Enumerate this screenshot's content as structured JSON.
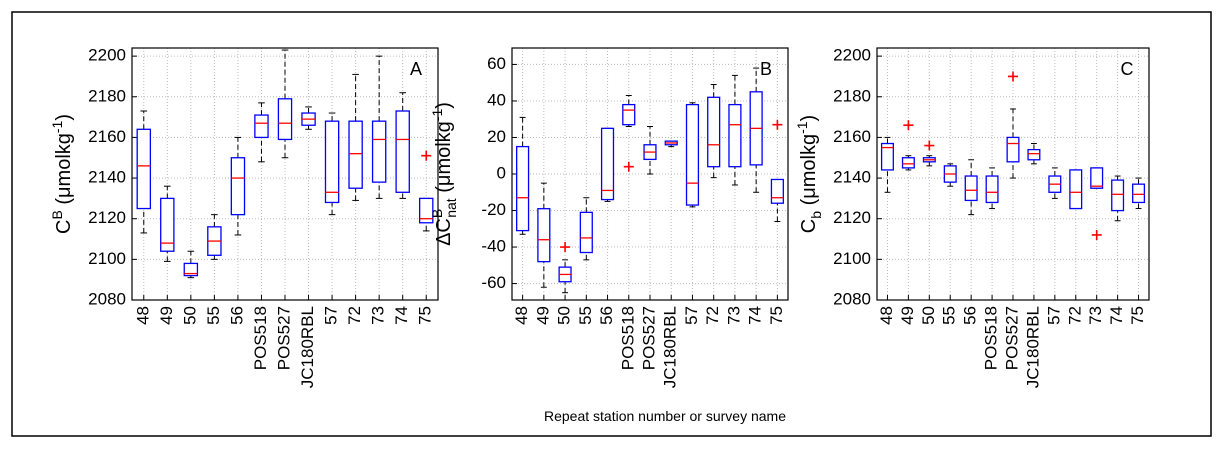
{
  "x_label": "Repeat station number or survey name",
  "chart_data": [
    {
      "type": "box",
      "panel": "A",
      "ylabel": [
        {
          "text": "C"
        },
        {
          "text": "B",
          "pos": "sup"
        },
        {
          "text": " (μmolkg"
        },
        {
          "text": "-1",
          "pos": "sup"
        },
        {
          "text": ")"
        }
      ],
      "categories": [
        "48",
        "49",
        "50",
        "55",
        "56",
        "POS518",
        "POS527",
        "JC180RBL",
        "57",
        "72",
        "73",
        "74",
        "75"
      ],
      "ylim": [
        2080,
        2204
      ],
      "yticks": [
        2080,
        2100,
        2120,
        2140,
        2160,
        2180,
        2200
      ],
      "grid": true,
      "box_color": "#0000ff",
      "median_color": "#ff0000",
      "outlier_color": "#ff0000",
      "boxes": [
        {
          "min": 2113,
          "q1": 2125,
          "median": 2146,
          "q3": 2164,
          "max": 2173
        },
        {
          "min": 2099,
          "q1": 2104,
          "median": 2108,
          "q3": 2130,
          "max": 2136
        },
        {
          "min": 2091,
          "q1": 2092,
          "median": 2093,
          "q3": 2098,
          "max": 2104
        },
        {
          "min": 2100,
          "q1": 2102,
          "median": 2109,
          "q3": 2116,
          "max": 2122
        },
        {
          "min": 2112,
          "q1": 2122,
          "median": 2140,
          "q3": 2150,
          "max": 2160
        },
        {
          "min": 2148,
          "q1": 2160,
          "median": 2167,
          "q3": 2171,
          "max": 2177
        },
        {
          "min": 2150,
          "q1": 2159,
          "median": 2167,
          "q3": 2179,
          "max": 2203
        },
        {
          "min": 2164,
          "q1": 2166,
          "median": 2169,
          "q3": 2172,
          "max": 2175
        },
        {
          "min": 2122,
          "q1": 2128,
          "median": 2133,
          "q3": 2168,
          "max": 2172
        },
        {
          "min": 2129,
          "q1": 2135,
          "median": 2152,
          "q3": 2168,
          "max": 2191
        },
        {
          "min": 2130,
          "q1": 2138,
          "median": 2159,
          "q3": 2168,
          "max": 2200
        },
        {
          "min": 2130,
          "q1": 2133,
          "median": 2159,
          "q3": 2173,
          "max": 2182
        },
        {
          "min": 2114,
          "q1": 2118,
          "median": 2120,
          "q3": 2130,
          "max": 2130,
          "outliers": [
            2151
          ]
        }
      ]
    },
    {
      "type": "box",
      "panel": "B",
      "ylabel": [
        {
          "text": "ΔC"
        },
        {
          "text": "B",
          "pos": "sup"
        },
        {
          "text": "nat",
          "pos": "sub"
        },
        {
          "text": " (μmolkg"
        },
        {
          "text": "-1",
          "pos": "sup"
        },
        {
          "text": ")"
        }
      ],
      "categories": [
        "48",
        "49",
        "50",
        "55",
        "56",
        "POS518",
        "POS527",
        "JC180RBL",
        "57",
        "72",
        "73",
        "74",
        "75"
      ],
      "ylim": [
        -69,
        69
      ],
      "yticks": [
        -60,
        -40,
        -20,
        0,
        20,
        40,
        60
      ],
      "grid": true,
      "box_color": "#0000ff",
      "median_color": "#ff0000",
      "outlier_color": "#ff0000",
      "boxes": [
        {
          "min": -33,
          "q1": -31,
          "median": -13,
          "q3": 15,
          "max": 31
        },
        {
          "min": -62,
          "q1": -48,
          "median": -36,
          "q3": -19,
          "max": -5
        },
        {
          "min": -65,
          "q1": -59,
          "median": -55,
          "q3": -51,
          "max": -47,
          "outliers": [
            -40
          ]
        },
        {
          "min": -47,
          "q1": -43,
          "median": -35,
          "q3": -21,
          "max": -13
        },
        {
          "min": -15,
          "q1": -14,
          "median": -9,
          "q3": 25,
          "max": 25
        },
        {
          "min": 26,
          "q1": 27,
          "median": 35,
          "q3": 38,
          "max": 43,
          "outliers": [
            4
          ]
        },
        {
          "min": 0,
          "q1": 8,
          "median": 12,
          "q3": 16,
          "max": 26
        },
        {
          "min": 15,
          "q1": 16,
          "median": 17,
          "q3": 18,
          "max": 18
        },
        {
          "min": -18,
          "q1": -17,
          "median": -5,
          "q3": 38,
          "max": 39
        },
        {
          "min": -2,
          "q1": 4,
          "median": 16,
          "q3": 42,
          "max": 49
        },
        {
          "min": -6,
          "q1": 4,
          "median": 27,
          "q3": 38,
          "max": 54
        },
        {
          "min": -10,
          "q1": 5,
          "median": 25,
          "q3": 45,
          "max": 58
        },
        {
          "min": -26,
          "q1": -16,
          "median": -13,
          "q3": -3,
          "max": -3,
          "outliers": [
            27
          ]
        }
      ]
    },
    {
      "type": "box",
      "panel": "C",
      "ylabel": [
        {
          "text": "C"
        },
        {
          "text": "b",
          "pos": "sub"
        },
        {
          "text": " (μmolkg"
        },
        {
          "text": "-1",
          "pos": "sup"
        },
        {
          "text": ")"
        }
      ],
      "categories": [
        "48",
        "49",
        "50",
        "55",
        "56",
        "POS518",
        "POS527",
        "JC180RBL",
        "57",
        "72",
        "73",
        "74",
        "75"
      ],
      "ylim": [
        2080,
        2204
      ],
      "yticks": [
        2080,
        2100,
        2120,
        2140,
        2160,
        2180,
        2200
      ],
      "grid": true,
      "box_color": "#0000ff",
      "median_color": "#ff0000",
      "outlier_color": "#ff0000",
      "boxes": [
        {
          "min": 2133,
          "q1": 2144,
          "median": 2155,
          "q3": 2157,
          "max": 2160
        },
        {
          "min": 2144,
          "q1": 2145,
          "median": 2147,
          "q3": 2150,
          "max": 2151,
          "outliers": [
            2166
          ]
        },
        {
          "min": 2146,
          "q1": 2148,
          "median": 2149,
          "q3": 2150,
          "max": 2151,
          "outliers": [
            2156
          ]
        },
        {
          "min": 2136,
          "q1": 2138,
          "median": 2142,
          "q3": 2146,
          "max": 2147
        },
        {
          "min": 2122,
          "q1": 2129,
          "median": 2134,
          "q3": 2141,
          "max": 2149
        },
        {
          "min": 2125,
          "q1": 2128,
          "median": 2133,
          "q3": 2141,
          "max": 2145
        },
        {
          "min": 2140,
          "q1": 2148,
          "median": 2157,
          "q3": 2160,
          "max": 2174,
          "outliers": [
            2190
          ]
        },
        {
          "min": 2147,
          "q1": 2149,
          "median": 2152,
          "q3": 2154,
          "max": 2157
        },
        {
          "min": 2130,
          "q1": 2133,
          "median": 2137,
          "q3": 2141,
          "max": 2145
        },
        {
          "min": 2125,
          "q1": 2125,
          "median": 2133,
          "q3": 2144,
          "max": 2144
        },
        {
          "min": 2135,
          "q1": 2135,
          "median": 2136,
          "q3": 2145,
          "max": 2145,
          "outliers": [
            2112
          ]
        },
        {
          "min": 2119,
          "q1": 2124,
          "median": 2132,
          "q3": 2139,
          "max": 2141
        },
        {
          "min": 2125,
          "q1": 2128,
          "median": 2132,
          "q3": 2137,
          "max": 2140
        }
      ]
    }
  ]
}
